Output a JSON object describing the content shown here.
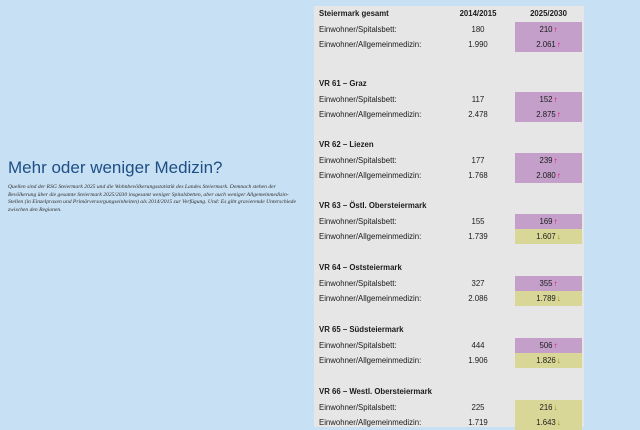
{
  "intro": {
    "heading": "Mehr oder weniger Medizin?",
    "text": "Quellen sind der RSG Steiermark 2025 und die Wohnbevölkerungsstatistik des Landes Steiermark. Demnach stehen der Bevölkerung über die gesamte Steiermark 2025/2030 insgesamt weniger Spitalsbetten, aber auch weniger Allgemeinmedizin-Stellen (in Einzelpraxen und Primärversorgungseinheiten) als 2014/2015 zur Verfügung. Und: Es gibt gravierende Unterschiede zwischen den Regionen."
  },
  "table": {
    "header": {
      "region": "Steiermark gesamt",
      "col_a": "2014/2015",
      "col_b": "2025/2030"
    },
    "colors": {
      "up_bg": "#c39fca",
      "down_bg": "#d9d797",
      "up_arrow": "#e6007e",
      "down_arrow": "#9a8a10"
    },
    "sections": [
      {
        "title": "",
        "rows": [
          {
            "label": "Einwohner/Spitalsbett:",
            "a": "180",
            "b": "210",
            "trend": "up",
            "arrow": "↑"
          },
          {
            "label": "Einwohner/Allgemeinmedizin:",
            "a": "1.990",
            "b": "2.061",
            "trend": "up",
            "arrow": "↑"
          }
        ]
      },
      {
        "title": "VR 61 – Graz",
        "rows": [
          {
            "label": "Einwohner/Spitalsbett:",
            "a": "117",
            "b": "152",
            "trend": "up",
            "arrow": "↑"
          },
          {
            "label": "Einwohner/Allgemeinmedizin:",
            "a": "2.478",
            "b": "2.875",
            "trend": "up",
            "arrow": "↑"
          }
        ]
      },
      {
        "title": "VR 62 – Liezen",
        "rows": [
          {
            "label": "Einwohner/Spitalsbett:",
            "a": "177",
            "b": "239",
            "trend": "up",
            "arrow": "↑"
          },
          {
            "label": "Einwohner/Allgemeinmedizin:",
            "a": "1.768",
            "b": "2.080",
            "trend": "up",
            "arrow": "↑"
          }
        ]
      },
      {
        "title": "VR 63 – Östl. Obersteiermark",
        "rows": [
          {
            "label": "Einwohner/Spitalsbett:",
            "a": "155",
            "b": "169",
            "trend": "up",
            "arrow": "↑"
          },
          {
            "label": "Einwohner/Allgemeinmedizin:",
            "a": "1.739",
            "b": "1.607",
            "trend": "down",
            "arrow": "↓"
          }
        ]
      },
      {
        "title": "VR 64 – Oststeiermark",
        "rows": [
          {
            "label": "Einwohner/Spitalsbett:",
            "a": "327",
            "b": "355",
            "trend": "up",
            "arrow": "↑"
          },
          {
            "label": "Einwohner/Allgemeinmedizin:",
            "a": "2.086",
            "b": "1.789",
            "trend": "down",
            "arrow": "↓"
          }
        ]
      },
      {
        "title": "VR 65 – Südsteiermark",
        "rows": [
          {
            "label": "Einwohner/Spitalsbett:",
            "a": "444",
            "b": "506",
            "trend": "up",
            "arrow": "↑"
          },
          {
            "label": "Einwohner/Allgemeinmedizin:",
            "a": "1.906",
            "b": "1.826",
            "trend": "down",
            "arrow": "↓"
          }
        ]
      },
      {
        "title": "VR 66 – Westl. Obersteiermark",
        "rows": [
          {
            "label": "Einwohner/Spitalsbett:",
            "a": "225",
            "b": "216",
            "trend": "down",
            "arrow": "↓"
          },
          {
            "label": "Einwohner/Allgemeinmedizin:",
            "a": "1.719",
            "b": "1.643",
            "trend": "down",
            "arrow": "↓"
          }
        ]
      }
    ]
  }
}
